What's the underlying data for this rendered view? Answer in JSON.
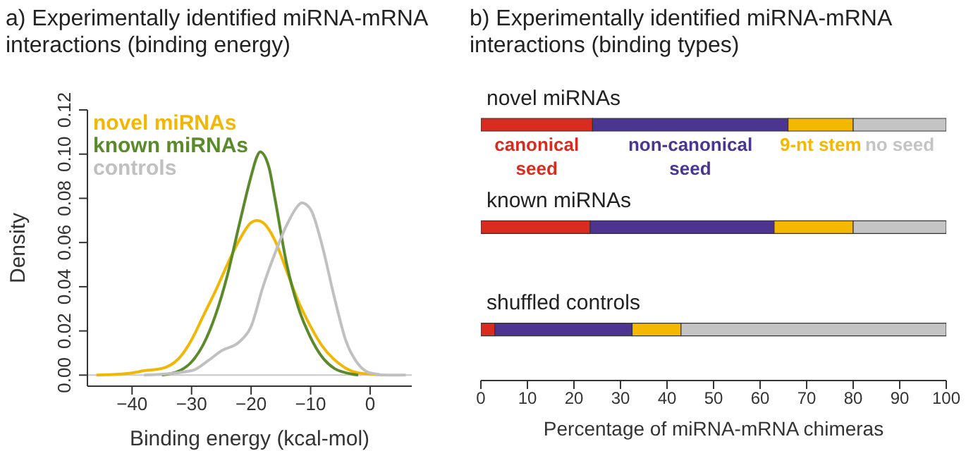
{
  "chart_data": [
    {
      "type": "line",
      "title": "a) Experimentally identified miRNA-mRNA interactions (binding energy)",
      "xlabel": "Binding energy (kcal-mol)",
      "ylabel": "Density",
      "xlim": [
        -47.5,
        7
      ],
      "ylim": [
        -0.005,
        0.12
      ],
      "xticks": [
        {
          "value": -40,
          "label": "−40"
        },
        {
          "value": -30,
          "label": "−30"
        },
        {
          "value": -20,
          "label": "−20"
        },
        {
          "value": -10,
          "label": "−10"
        },
        {
          "value": 0,
          "label": "0"
        }
      ],
      "yticks": [
        {
          "value": 0,
          "label": "0.00"
        },
        {
          "value": 0.02,
          "label": "0.02"
        },
        {
          "value": 0.04,
          "label": "0.04"
        },
        {
          "value": 0.06,
          "label": "0.06"
        },
        {
          "value": 0.08,
          "label": "0.08"
        },
        {
          "value": 0.1,
          "label": "0.10"
        },
        {
          "value": 0.12,
          "label": "0.12"
        }
      ],
      "grid": false,
      "legend": "top left",
      "marker": "none",
      "line_style": "solid",
      "ref_lines": [
        {
          "axis": "y",
          "value": 0,
          "color": "#c8c8c8"
        }
      ],
      "series": [
        {
          "name": "novel miRNAs",
          "color": "#f2b705",
          "x": [
            -46,
            -40,
            -38,
            -35,
            -32,
            -30,
            -28,
            -26,
            -24,
            -22,
            -20,
            -19,
            -18,
            -16,
            -14,
            -12,
            -10,
            -8,
            -6,
            -4,
            -2,
            0,
            2
          ],
          "values": [
            0,
            0.001,
            0.002,
            0.003,
            0.008,
            0.016,
            0.027,
            0.038,
            0.05,
            0.061,
            0.069,
            0.07,
            0.069,
            0.061,
            0.047,
            0.033,
            0.022,
            0.013,
            0.007,
            0.003,
            0.001,
            0.0005,
            0
          ]
        },
        {
          "name": "known miRNAs",
          "color": "#5b8a2b",
          "x": [
            -35,
            -32,
            -30,
            -28,
            -26,
            -24,
            -22,
            -20,
            -19,
            -18.5,
            -17,
            -16,
            -14,
            -12,
            -10,
            -8,
            -6,
            -4,
            -2
          ],
          "values": [
            0,
            0.002,
            0.006,
            0.014,
            0.027,
            0.045,
            0.068,
            0.09,
            0.099,
            0.101,
            0.094,
            0.08,
            0.05,
            0.03,
            0.017,
            0.008,
            0.003,
            0.001,
            0
          ]
        },
        {
          "name": "controls",
          "color": "#c0c0c0",
          "x": [
            -38,
            -30,
            -27,
            -25,
            -22,
            -20,
            -18,
            -16,
            -14,
            -12,
            -11.5,
            -10,
            -8,
            -6,
            -4,
            -2,
            0,
            3,
            6
          ],
          "values": [
            0,
            0.002,
            0.007,
            0.011,
            0.015,
            0.022,
            0.04,
            0.055,
            0.068,
            0.077,
            0.078,
            0.075,
            0.058,
            0.035,
            0.015,
            0.005,
            0.001,
            0,
            0
          ]
        }
      ]
    },
    {
      "type": "bar",
      "orientation": "horizontal",
      "stacked": true,
      "title": "b) Experimentally identified miRNA-mRNA interactions (binding types)",
      "xlabel": "Percentage of miRNA-mRNA chimeras",
      "categories": [
        "novel miRNAs",
        "known miRNAs",
        "shuffled controls"
      ],
      "xlim": [
        0,
        100
      ],
      "xticks": [
        0,
        10,
        20,
        30,
        40,
        50,
        60,
        70,
        80,
        90,
        100
      ],
      "grid": false,
      "legend": false,
      "series": [
        {
          "name": "canonical seed",
          "color": "#d92b1f",
          "values": [
            24,
            23.5,
            3
          ]
        },
        {
          "name": "non-canonical seed",
          "color": "#4b3591",
          "values": [
            42,
            39.5,
            29.5
          ]
        },
        {
          "name": "9-nt stem",
          "color": "#f5b800",
          "values": [
            14,
            17,
            10.5
          ]
        },
        {
          "name": "no seed",
          "color": "#c4c4c4",
          "values": [
            20,
            20,
            57
          ]
        }
      ]
    }
  ]
}
